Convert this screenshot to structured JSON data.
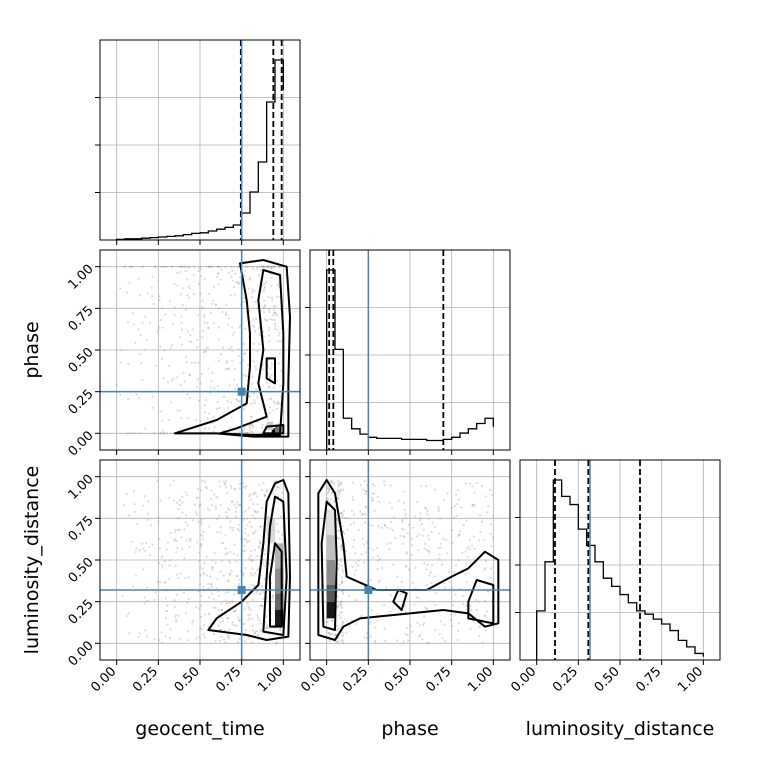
{
  "chart_data": {
    "type": "corner",
    "parameters": [
      "geocent_time",
      "phase",
      "luminosity_distance"
    ],
    "axis_range": [
      -0.1,
      1.1
    ],
    "tick_labels": [
      "0.00",
      "0.25",
      "0.50",
      "0.75",
      "1.00"
    ],
    "tick_values": [
      0,
      0.25,
      0.5,
      0.75,
      1.0
    ],
    "grid": true,
    "colors": {
      "truth": "#4682b4",
      "hist": "#000000",
      "scatter": "#999999",
      "contour": "#000000"
    },
    "truths": {
      "geocent_time": 0.75,
      "phase": 0.25,
      "luminosity_distance": 0.32
    },
    "quantiles": {
      "geocent_time": [
        0.745,
        0.94,
        0.99
      ],
      "phase": [
        0.015,
        0.04,
        0.7
      ],
      "luminosity_distance": [
        0.11,
        0.31,
        0.62
      ]
    },
    "histograms": {
      "geocent_time": {
        "bins": [
          0.0,
          0.05,
          0.1,
          0.15,
          0.2,
          0.25,
          0.3,
          0.35,
          0.4,
          0.45,
          0.5,
          0.55,
          0.6,
          0.65,
          0.7,
          0.75,
          0.8,
          0.85,
          0.9,
          0.95,
          1.0
        ],
        "counts": [
          1,
          2,
          2,
          3,
          4,
          5,
          6,
          7,
          9,
          11,
          12,
          15,
          18,
          21,
          25,
          45,
          80,
          130,
          230,
          300,
          250
        ]
      },
      "phase": {
        "bins": [
          0.0,
          0.05,
          0.1,
          0.15,
          0.2,
          0.25,
          0.3,
          0.35,
          0.4,
          0.45,
          0.5,
          0.55,
          0.6,
          0.65,
          0.7,
          0.75,
          0.8,
          0.85,
          0.9,
          0.95,
          1.0
        ],
        "counts": [
          170,
          95,
          30,
          20,
          15,
          12,
          11,
          11,
          11,
          10,
          10,
          10,
          9,
          9,
          10,
          12,
          16,
          20,
          25,
          30,
          22
        ]
      },
      "luminosity_distance": {
        "bins": [
          0.0,
          0.05,
          0.1,
          0.15,
          0.2,
          0.25,
          0.3,
          0.35,
          0.4,
          0.45,
          0.5,
          0.55,
          0.6,
          0.65,
          0.7,
          0.75,
          0.8,
          0.85,
          0.9,
          0.95,
          1.0
        ],
        "counts": [
          30,
          60,
          110,
          100,
          95,
          80,
          70,
          60,
          50,
          45,
          40,
          35,
          30,
          28,
          25,
          22,
          18,
          12,
          8,
          4,
          2
        ]
      }
    },
    "density_cells": {
      "phase_vs_geocent_time": [
        [
          0.93,
          0.0,
          0.04,
          0.03,
          0.95
        ],
        [
          0.95,
          0.0,
          0.04,
          0.05,
          0.55
        ],
        [
          0.9,
          0.02,
          0.04,
          0.05,
          0.2
        ]
      ],
      "luminosity_distance_vs_geocent_time": [
        [
          0.95,
          0.1,
          0.05,
          0.1,
          0.9
        ],
        [
          0.95,
          0.2,
          0.05,
          0.1,
          0.6
        ],
        [
          0.95,
          0.3,
          0.05,
          0.15,
          0.45
        ],
        [
          0.95,
          0.45,
          0.05,
          0.15,
          0.3
        ],
        [
          0.9,
          0.6,
          0.05,
          0.15,
          0.15
        ]
      ],
      "luminosity_distance_vs_phase": [
        [
          0.0,
          0.15,
          0.05,
          0.1,
          0.9
        ],
        [
          0.0,
          0.25,
          0.05,
          0.1,
          0.65
        ],
        [
          0.0,
          0.35,
          0.05,
          0.15,
          0.45
        ],
        [
          0.0,
          0.5,
          0.05,
          0.15,
          0.25
        ],
        [
          0.0,
          0.65,
          0.05,
          0.15,
          0.12
        ]
      ]
    },
    "contours": {
      "phase_vs_geocent_time": [
        [
          [
            0.35,
            0.0
          ],
          [
            0.6,
            0.0
          ],
          [
            0.82,
            -0.02
          ],
          [
            1.03,
            -0.02
          ],
          [
            1.03,
            0.3
          ],
          [
            1.04,
            0.7
          ],
          [
            1.02,
            1.0
          ],
          [
            0.88,
            1.04
          ],
          [
            0.74,
            1.02
          ],
          [
            0.78,
            0.8
          ],
          [
            0.8,
            0.6
          ],
          [
            0.8,
            0.4
          ],
          [
            0.78,
            0.18
          ],
          [
            0.6,
            0.08
          ],
          [
            0.35,
            0.0
          ]
        ],
        [
          [
            0.62,
            0.0
          ],
          [
            0.8,
            -0.01
          ],
          [
            0.98,
            -0.01
          ],
          [
            1.0,
            0.3
          ],
          [
            1.0,
            0.6
          ],
          [
            0.98,
            0.95
          ],
          [
            0.88,
            0.98
          ],
          [
            0.85,
            0.8
          ],
          [
            0.88,
            0.5
          ],
          [
            0.85,
            0.3
          ],
          [
            0.9,
            0.1
          ],
          [
            0.72,
            0.03
          ],
          [
            0.62,
            0.0
          ]
        ],
        [
          [
            0.88,
            0.0
          ],
          [
            1.0,
            0.0
          ],
          [
            1.0,
            0.05
          ],
          [
            0.9,
            0.04
          ],
          [
            0.88,
            0.0
          ]
        ],
        [
          [
            0.9,
            0.33
          ],
          [
            0.95,
            0.3
          ],
          [
            0.95,
            0.45
          ],
          [
            0.9,
            0.45
          ],
          [
            0.9,
            0.33
          ]
        ]
      ],
      "luminosity_distance_vs_geocent_time": [
        [
          [
            0.78,
            0.05
          ],
          [
            0.9,
            0.02
          ],
          [
            1.03,
            0.04
          ],
          [
            1.04,
            0.4
          ],
          [
            1.03,
            0.9
          ],
          [
            1.0,
            0.98
          ],
          [
            0.95,
            0.96
          ],
          [
            0.9,
            0.85
          ],
          [
            0.88,
            0.6
          ],
          [
            0.85,
            0.35
          ],
          [
            0.75,
            0.25
          ],
          [
            0.6,
            0.15
          ],
          [
            0.55,
            0.08
          ],
          [
            0.78,
            0.05
          ]
        ],
        [
          [
            0.88,
            0.07
          ],
          [
            1.0,
            0.05
          ],
          [
            1.02,
            0.4
          ],
          [
            1.0,
            0.85
          ],
          [
            0.95,
            0.88
          ],
          [
            0.92,
            0.7
          ],
          [
            0.9,
            0.4
          ],
          [
            0.88,
            0.07
          ]
        ],
        [
          [
            0.92,
            0.1
          ],
          [
            0.99,
            0.1
          ],
          [
            0.99,
            0.55
          ],
          [
            0.95,
            0.6
          ],
          [
            0.92,
            0.4
          ],
          [
            0.92,
            0.1
          ]
        ]
      ],
      "luminosity_distance_vs_phase": [
        [
          [
            -0.05,
            0.05
          ],
          [
            0.05,
            0.02
          ],
          [
            0.1,
            0.1
          ],
          [
            0.2,
            0.15
          ],
          [
            0.5,
            0.18
          ],
          [
            0.7,
            0.2
          ],
          [
            0.85,
            0.18
          ],
          [
            0.95,
            0.1
          ],
          [
            1.03,
            0.12
          ],
          [
            1.03,
            0.5
          ],
          [
            0.95,
            0.55
          ],
          [
            0.85,
            0.45
          ],
          [
            0.75,
            0.4
          ],
          [
            0.6,
            0.32
          ],
          [
            0.3,
            0.32
          ],
          [
            0.12,
            0.4
          ],
          [
            0.1,
            0.6
          ],
          [
            0.05,
            0.9
          ],
          [
            0.0,
            0.98
          ],
          [
            -0.05,
            0.9
          ],
          [
            -0.05,
            0.05
          ]
        ],
        [
          [
            -0.02,
            0.1
          ],
          [
            0.05,
            0.08
          ],
          [
            0.06,
            0.5
          ],
          [
            0.05,
            0.8
          ],
          [
            0.0,
            0.85
          ],
          [
            -0.03,
            0.6
          ],
          [
            -0.02,
            0.1
          ]
        ],
        [
          [
            0.85,
            0.15
          ],
          [
            1.0,
            0.12
          ],
          [
            1.0,
            0.35
          ],
          [
            0.9,
            0.38
          ],
          [
            0.85,
            0.25
          ],
          [
            0.85,
            0.15
          ]
        ],
        [
          [
            0.4,
            0.25
          ],
          [
            0.45,
            0.2
          ],
          [
            0.48,
            0.3
          ],
          [
            0.43,
            0.32
          ],
          [
            0.4,
            0.25
          ]
        ]
      ]
    }
  }
}
